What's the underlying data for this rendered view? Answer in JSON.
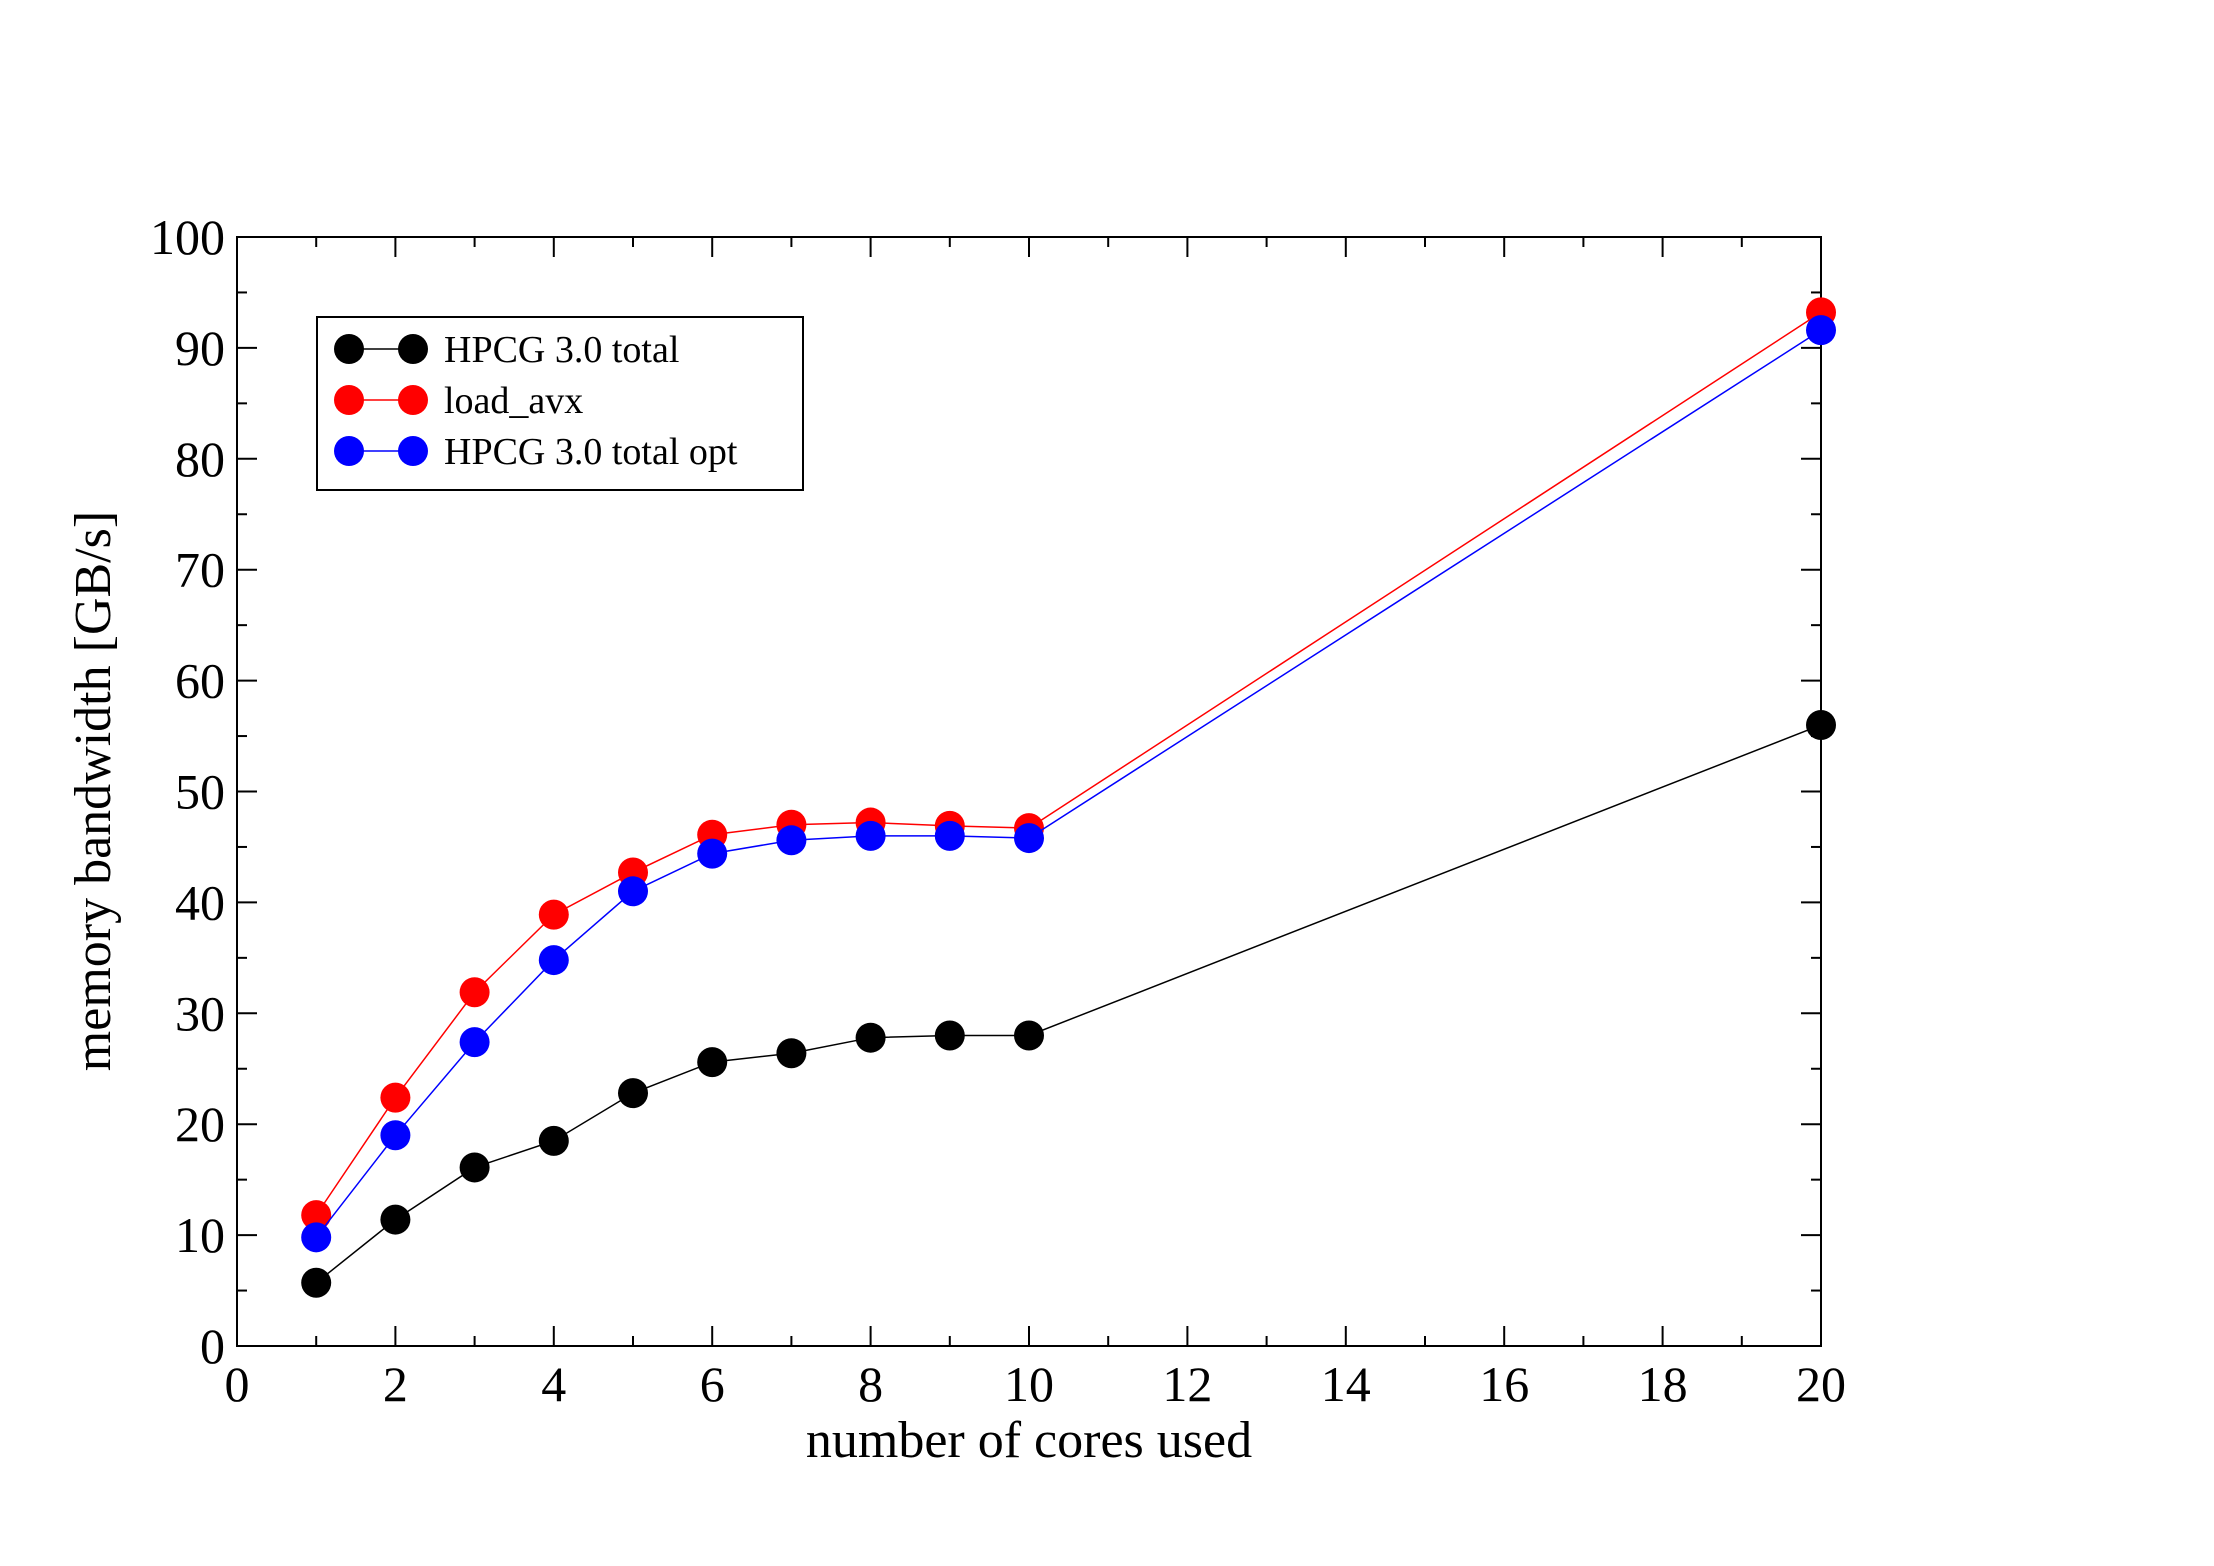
{
  "chart_data": {
    "type": "line",
    "xlabel": "number of cores used",
    "ylabel": "memory bandwidth [GB/s]",
    "xlim": [
      0,
      20
    ],
    "ylim": [
      0,
      100
    ],
    "x_ticks": [
      0,
      2,
      4,
      6,
      8,
      10,
      12,
      14,
      16,
      18,
      20
    ],
    "y_ticks": [
      0,
      10,
      20,
      30,
      40,
      50,
      60,
      70,
      80,
      90,
      100
    ],
    "grid": false,
    "legend_position": "top-left",
    "x": [
      1,
      2,
      3,
      4,
      5,
      6,
      7,
      8,
      9,
      10,
      20
    ],
    "series": [
      {
        "name": "HPCG 3.0 total",
        "color": "#000000",
        "values": [
          5.7,
          11.4,
          16.1,
          18.5,
          22.8,
          25.6,
          26.4,
          27.8,
          28.0,
          28.0,
          56.0
        ]
      },
      {
        "name": "load_avx",
        "color": "#ff0000",
        "values": [
          11.8,
          22.4,
          31.9,
          38.9,
          42.7,
          46.1,
          47.0,
          47.2,
          46.9,
          46.7,
          93.2
        ]
      },
      {
        "name": "HPCG 3.0 total opt",
        "color": "#0000ff",
        "values": [
          9.8,
          19.0,
          27.4,
          34.8,
          41.0,
          44.4,
          45.6,
          46.0,
          46.0,
          45.8,
          91.6
        ]
      }
    ]
  }
}
